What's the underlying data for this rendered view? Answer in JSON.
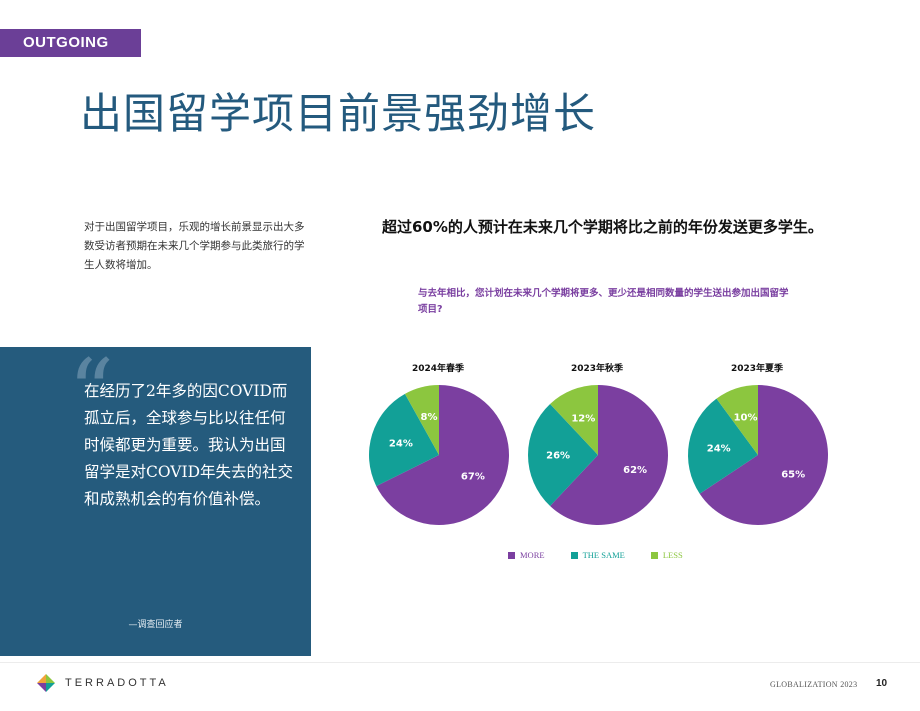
{
  "section_tag": "OUTGOING",
  "title": "出国留学项目前景强劲增长",
  "intro": "对于出国留学项目，乐观的增长前景显示出大多数受访者预期在未来几个学期参与此类旅行的学生人数将增加。",
  "headline": "超过60%的人预计在未来几个学期将比之前的年份发送更多学生。",
  "question": "与去年相比，您计划在未来几个学期将更多、更少还是相同数量的学生送出参加出国留学项目?",
  "quote": {
    "mark": "“",
    "text": "在经历了2年多的因COVID而孤立后，全球参与比以往任何时候都更为重要。我认为出国留学是对COVID年失去的社交和成熟机会的有价值补偿。",
    "attribution": "—调查回应者"
  },
  "chart_data": {
    "type": "pie",
    "colors": {
      "MORE": "#7b3fa0",
      "THE SAME": "#12a097",
      "LESS": "#8cc63f"
    },
    "legend": [
      "MORE",
      "THE SAME",
      "LESS"
    ],
    "legend_placement": "bottom",
    "charts": [
      {
        "title": "2024年春季",
        "slices": [
          {
            "name": "MORE",
            "value": 67,
            "label": "67%"
          },
          {
            "name": "THE SAME",
            "value": 24,
            "label": "24%"
          },
          {
            "name": "LESS",
            "value": 8,
            "label": "8%"
          }
        ]
      },
      {
        "title": "2023年秋季",
        "slices": [
          {
            "name": "MORE",
            "value": 62,
            "label": "62%"
          },
          {
            "name": "THE SAME",
            "value": 26,
            "label": "26%"
          },
          {
            "name": "LESS",
            "value": 12,
            "label": "12%"
          }
        ]
      },
      {
        "title": "2023年夏季",
        "slices": [
          {
            "name": "MORE",
            "value": 65,
            "label": "65%"
          },
          {
            "name": "THE SAME",
            "value": 24,
            "label": "24%"
          },
          {
            "name": "LESS",
            "value": 10,
            "label": "10%"
          }
        ]
      }
    ]
  },
  "footer": {
    "logo_text": "TERRADOTTA",
    "logo_icon": "terradotta-logo-icon",
    "label": "GLOBALIZATION 2023",
    "page": "10"
  }
}
